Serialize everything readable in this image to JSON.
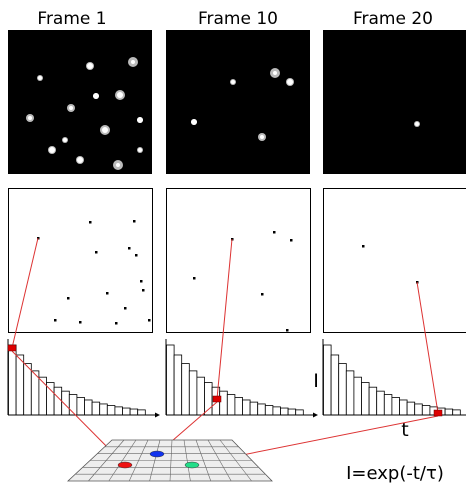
{
  "frames": [
    {
      "title": "Frame 1"
    },
    {
      "title": "Frame 10"
    },
    {
      "title": "Frame 20"
    }
  ],
  "axis_labels": {
    "y": "I",
    "x": "t"
  },
  "formula": "I=exp(-t/τ)"
}
